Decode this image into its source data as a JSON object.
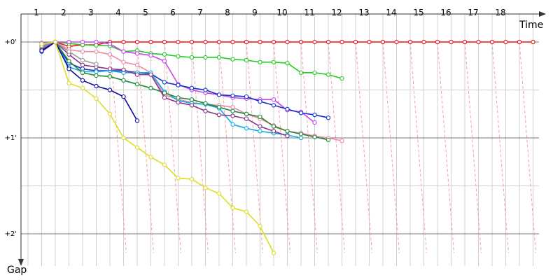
{
  "chart_data": {
    "type": "line",
    "title": "",
    "xlabel": "Time",
    "ylabel": "Gap",
    "x_ticks": [
      1,
      2,
      3,
      4,
      5,
      6,
      7,
      8,
      9,
      10,
      11,
      12,
      13,
      14,
      15,
      16,
      17,
      18
    ],
    "y_ticks": [
      {
        "value": 0,
        "label": "+0'"
      },
      {
        "value": 1,
        "label": "+1'"
      },
      {
        "value": 2,
        "label": "+2'"
      }
    ],
    "y_direction": "down",
    "grid": true,
    "series": [
      {
        "color": "#ee1111",
        "points": [
          [
            0.5,
            0.06
          ],
          [
            1,
            0
          ],
          [
            1.5,
            0.045
          ],
          [
            2,
            0.03
          ],
          [
            2.5,
            0.03
          ],
          [
            3,
            0
          ],
          [
            3.5,
            0
          ],
          [
            4,
            0
          ],
          [
            4.5,
            0
          ],
          [
            5,
            0
          ],
          [
            5.5,
            0
          ],
          [
            6,
            0
          ],
          [
            6.5,
            0
          ],
          [
            7,
            0
          ],
          [
            7.5,
            0
          ],
          [
            8,
            0
          ],
          [
            8.5,
            0
          ],
          [
            9,
            0
          ],
          [
            9.5,
            0
          ],
          [
            10,
            0
          ],
          [
            10.5,
            0
          ],
          [
            11,
            0
          ],
          [
            11.5,
            0
          ],
          [
            12,
            0
          ],
          [
            12.5,
            0
          ],
          [
            13,
            0
          ],
          [
            13.5,
            0
          ],
          [
            14,
            0
          ],
          [
            14.5,
            0
          ],
          [
            15,
            0
          ],
          [
            15.5,
            0
          ],
          [
            16,
            0
          ],
          [
            16.5,
            0
          ],
          [
            17,
            0
          ],
          [
            17.5,
            0
          ],
          [
            18,
            0
          ],
          [
            18.5,
            0
          ]
        ]
      },
      {
        "color": "#22cc22",
        "points": [
          [
            0.5,
            0.02
          ],
          [
            1,
            0
          ],
          [
            1.5,
            0.015
          ],
          [
            2,
            0.03
          ],
          [
            2.5,
            0.035
          ],
          [
            3,
            0.04
          ],
          [
            3.5,
            0.1
          ],
          [
            4,
            0.09
          ],
          [
            4.5,
            0.12
          ],
          [
            5,
            0.13
          ],
          [
            5.5,
            0.15
          ],
          [
            6,
            0.16
          ],
          [
            6.5,
            0.16
          ],
          [
            7,
            0.16
          ],
          [
            7.5,
            0.18
          ],
          [
            8,
            0.19
          ],
          [
            8.5,
            0.21
          ],
          [
            9,
            0.21
          ],
          [
            9.5,
            0.22
          ],
          [
            10,
            0.32
          ],
          [
            10.5,
            0.32
          ],
          [
            11,
            0.34
          ],
          [
            11.5,
            0.38
          ]
        ]
      },
      {
        "color": "#cc44ee",
        "points": [
          [
            0.5,
            0.01
          ],
          [
            1,
            0
          ],
          [
            1.5,
            0
          ],
          [
            2,
            0
          ],
          [
            2.5,
            0
          ],
          [
            3,
            0.02
          ],
          [
            3.5,
            0.1
          ],
          [
            4,
            0.12
          ],
          [
            4.5,
            0.14
          ],
          [
            5,
            0.2
          ],
          [
            5.5,
            0.44
          ],
          [
            6,
            0.5
          ],
          [
            6.5,
            0.53
          ],
          [
            7,
            0.55
          ],
          [
            7.5,
            0.58
          ],
          [
            8,
            0.59
          ],
          [
            8.5,
            0.6
          ],
          [
            9,
            0.6
          ],
          [
            9.5,
            0.71
          ],
          [
            10,
            0.73
          ],
          [
            10.5,
            0.84
          ]
        ]
      },
      {
        "color": "#ee88aa",
        "points": [
          [
            0.5,
            0.07
          ],
          [
            1,
            0
          ],
          [
            1.5,
            0.08
          ],
          [
            2,
            0.1
          ],
          [
            2.5,
            0.1
          ],
          [
            3,
            0.13
          ],
          [
            3.5,
            0.21
          ],
          [
            4,
            0.24
          ],
          [
            4.5,
            0.32
          ],
          [
            5,
            0.55
          ],
          [
            5.5,
            0.6
          ],
          [
            6,
            0.63
          ],
          [
            6.5,
            0.65
          ],
          [
            7,
            0.66
          ],
          [
            7.5,
            0.68
          ],
          [
            8,
            0.75
          ],
          [
            8.5,
            0.8
          ],
          [
            9,
            0.87
          ],
          [
            9.5,
            0.93
          ],
          [
            10,
            0.95
          ],
          [
            10.5,
            0.98
          ],
          [
            11,
            1.0
          ],
          [
            11.5,
            1.03
          ]
        ]
      },
      {
        "color": "#1133cc",
        "points": [
          [
            0.5,
            0.1
          ],
          [
            1,
            0
          ],
          [
            1.5,
            0.22
          ],
          [
            2,
            0.28
          ],
          [
            2.5,
            0.3
          ],
          [
            3,
            0.3
          ],
          [
            3.5,
            0.3
          ],
          [
            4,
            0.32
          ],
          [
            4.5,
            0.33
          ],
          [
            5,
            0.42
          ],
          [
            5.5,
            0.45
          ],
          [
            6,
            0.48
          ],
          [
            6.5,
            0.5
          ],
          [
            7,
            0.55
          ],
          [
            7.5,
            0.56
          ],
          [
            8,
            0.57
          ],
          [
            8.5,
            0.62
          ],
          [
            9,
            0.66
          ],
          [
            9.5,
            0.7
          ],
          [
            10,
            0.74
          ],
          [
            10.5,
            0.76
          ],
          [
            11,
            0.79
          ]
        ]
      },
      {
        "color": "#11aaee",
        "points": [
          [
            0.5,
            0.05
          ],
          [
            1,
            0
          ],
          [
            1.5,
            0.26
          ],
          [
            2,
            0.31
          ],
          [
            2.5,
            0.31
          ],
          [
            3,
            0.3
          ],
          [
            3.5,
            0.32
          ],
          [
            4,
            0.32
          ],
          [
            4.5,
            0.32
          ],
          [
            5,
            0.52
          ],
          [
            5.5,
            0.61
          ],
          [
            6,
            0.64
          ],
          [
            6.5,
            0.65
          ],
          [
            7,
            0.69
          ],
          [
            7.5,
            0.86
          ],
          [
            8,
            0.9
          ],
          [
            8.5,
            0.93
          ],
          [
            9,
            0.95
          ],
          [
            9.5,
            0.97
          ],
          [
            10,
            1.0
          ]
        ]
      },
      {
        "color": "#228833",
        "points": [
          [
            0.5,
            0.04
          ],
          [
            1,
            0
          ],
          [
            1.5,
            0.2
          ],
          [
            2,
            0.32
          ],
          [
            2.5,
            0.35
          ],
          [
            3,
            0.36
          ],
          [
            3.5,
            0.4
          ],
          [
            4,
            0.44
          ],
          [
            4.5,
            0.48
          ],
          [
            5,
            0.53
          ],
          [
            5.5,
            0.58
          ],
          [
            6,
            0.6
          ],
          [
            6.5,
            0.64
          ],
          [
            7,
            0.68
          ],
          [
            7.5,
            0.72
          ],
          [
            8,
            0.75
          ],
          [
            8.5,
            0.78
          ],
          [
            9,
            0.88
          ],
          [
            9.5,
            0.93
          ],
          [
            10,
            0.96
          ],
          [
            10.5,
            0.99
          ],
          [
            11,
            1.02
          ]
        ]
      },
      {
        "color": "#883388",
        "points": [
          [
            0.5,
            0.08
          ],
          [
            1,
            0
          ],
          [
            1.5,
            0.13
          ],
          [
            2,
            0.24
          ],
          [
            2.5,
            0.26
          ],
          [
            3,
            0.28
          ],
          [
            3.5,
            0.29
          ],
          [
            4,
            0.34
          ],
          [
            4.5,
            0.34
          ],
          [
            5,
            0.58
          ],
          [
            5.5,
            0.63
          ],
          [
            6,
            0.66
          ],
          [
            6.5,
            0.72
          ],
          [
            7,
            0.76
          ],
          [
            7.5,
            0.77
          ],
          [
            8,
            0.8
          ],
          [
            8.5,
            0.88
          ],
          [
            9,
            0.93
          ],
          [
            9.5,
            0.98
          ]
        ]
      },
      {
        "color": "#999999",
        "points": [
          [
            0.5,
            0.04
          ],
          [
            1,
            0
          ],
          [
            1.5,
            0.1
          ],
          [
            2,
            0.19
          ],
          [
            2.5,
            0.23
          ]
        ]
      },
      {
        "color": "#0b0ba0",
        "points": [
          [
            0.5,
            0.09
          ],
          [
            1,
            0
          ],
          [
            1.5,
            0.28
          ],
          [
            2,
            0.4
          ],
          [
            2.5,
            0.46
          ],
          [
            3,
            0.5
          ],
          [
            3.5,
            0.57
          ],
          [
            4,
            0.82
          ]
        ]
      },
      {
        "color": "#dddd22",
        "points": [
          [
            0.5,
            0.02
          ],
          [
            1,
            0
          ],
          [
            1.5,
            0.43
          ],
          [
            2,
            0.48
          ],
          [
            2.5,
            0.59
          ],
          [
            3,
            0.75
          ],
          [
            3.5,
            1.0
          ],
          [
            4,
            1.1
          ],
          [
            4.5,
            1.2
          ],
          [
            5,
            1.28
          ],
          [
            5.5,
            1.42
          ],
          [
            6,
            1.43
          ],
          [
            6.5,
            1.52
          ],
          [
            7,
            1.58
          ],
          [
            7.5,
            1.73
          ],
          [
            8,
            1.77
          ],
          [
            8.5,
            1.92
          ],
          [
            9,
            2.2
          ]
        ]
      }
    ],
    "dashed_connectors": true
  }
}
